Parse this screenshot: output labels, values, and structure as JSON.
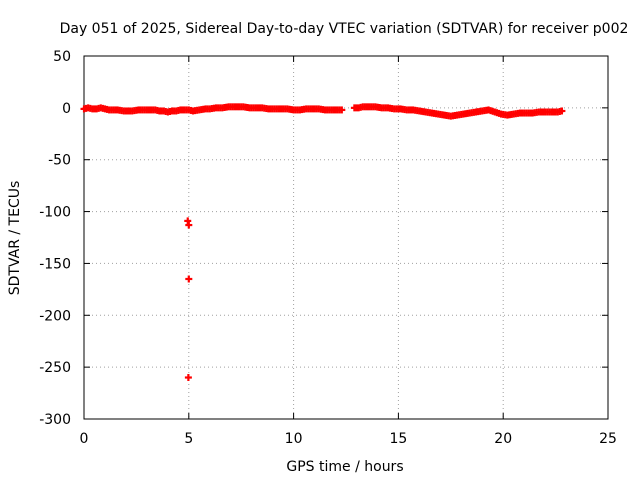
{
  "chart_data": {
    "type": "scatter",
    "title": "Day 051 of 2025, Sidereal Day-to-day VTEC variation (SDTVAR) for receiver p002",
    "xlabel": "GPS time / hours",
    "ylabel": "SDTVAR / TECUs",
    "xlim": [
      0,
      25
    ],
    "ylim": [
      -300,
      50
    ],
    "xticks": [
      "0",
      "5",
      "10",
      "15",
      "20",
      "25"
    ],
    "yticks": [
      "50",
      "0",
      "-50",
      "-100",
      "-150",
      "-200",
      "-250",
      "-300"
    ],
    "grid": true,
    "marker": "plus",
    "point_color": "#ff0000",
    "series": [
      {
        "name": "SDTVAR",
        "x": [
          0.0,
          0.2,
          0.4,
          0.6,
          0.8,
          1.0,
          1.2,
          1.6,
          1.9,
          2.1,
          2.3,
          2.6,
          2.8,
          3.0,
          3.2,
          3.4,
          3.6,
          3.8,
          4.0,
          4.2,
          4.4,
          4.6,
          4.8,
          5.0,
          5.2,
          5.5,
          5.8,
          6.0,
          6.3,
          6.6,
          6.9,
          7.2,
          7.6,
          7.9,
          8.2,
          8.5,
          8.8,
          9.1,
          9.4,
          9.7,
          10.0,
          10.3,
          10.6,
          10.9,
          11.2,
          11.5,
          11.8,
          12.1,
          12.3,
          12.9,
          13.1,
          13.3,
          13.6,
          13.9,
          14.2,
          14.5,
          14.8,
          15.1,
          15.4,
          15.7,
          16.0,
          16.3,
          16.6,
          16.9,
          17.2,
          17.5,
          17.8,
          18.1,
          18.4,
          18.7,
          19.0,
          19.3,
          19.6,
          19.9,
          20.2,
          20.5,
          20.8,
          21.1,
          21.4,
          21.7,
          22.0,
          22.3,
          22.6,
          22.8,
          4.95,
          5.0,
          5.0,
          4.98
        ],
        "y": [
          -1,
          0,
          -1,
          -1,
          0,
          -1,
          -2,
          -2,
          -3,
          -3,
          -3,
          -2,
          -2,
          -2,
          -2,
          -2,
          -3,
          -3,
          -4,
          -3,
          -3,
          -2,
          -2,
          -2,
          -3,
          -2,
          -1,
          -1,
          0,
          0,
          1,
          1,
          1,
          0,
          0,
          0,
          -1,
          -1,
          -1,
          -1,
          -2,
          -2,
          -1,
          -1,
          -1,
          -2,
          -2,
          -2,
          -2,
          0,
          0,
          1,
          1,
          1,
          0,
          0,
          -1,
          -1,
          -2,
          -2,
          -3,
          -4,
          -5,
          -6,
          -7,
          -8,
          -7,
          -6,
          -5,
          -4,
          -3,
          -2,
          -4,
          -6,
          -7,
          -6,
          -5,
          -5,
          -5,
          -4,
          -4,
          -4,
          -4,
          -3,
          -109,
          -113,
          -165,
          -260
        ]
      }
    ]
  }
}
